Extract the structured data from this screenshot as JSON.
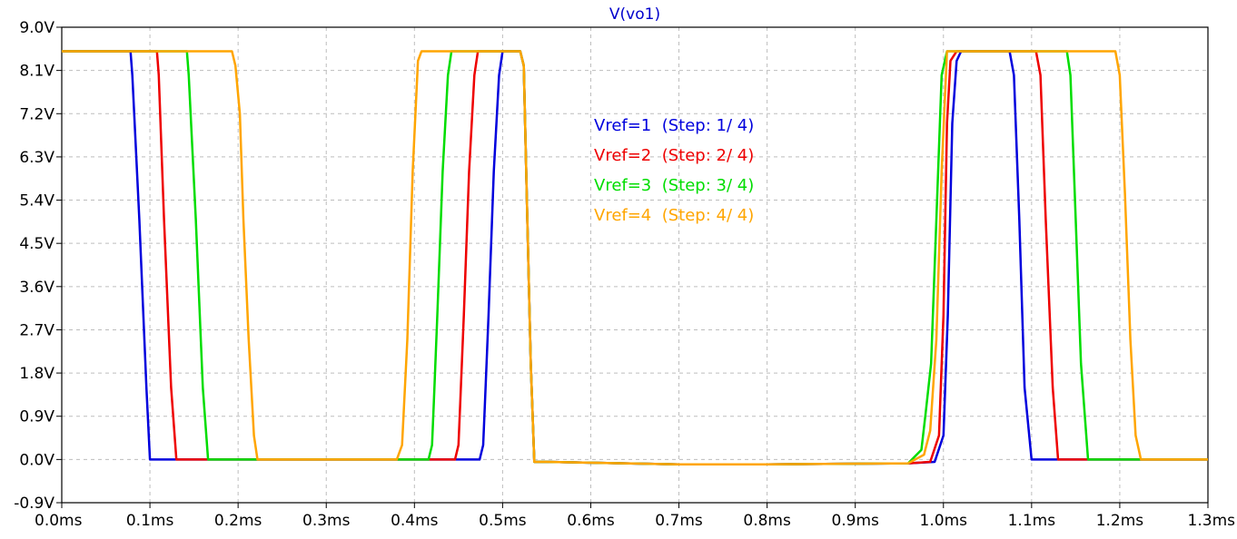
{
  "chart_data": {
    "type": "line",
    "title": "V(vo1)",
    "title_color": "#0000cc",
    "xlabel": "",
    "ylabel": "",
    "xlim": [
      0.0,
      1.3
    ],
    "ylim": [
      -0.9,
      9.0
    ],
    "x_unit": "ms",
    "y_unit": "V",
    "x_ticks": [
      "0.0ms",
      "0.1ms",
      "0.2ms",
      "0.3ms",
      "0.4ms",
      "0.5ms",
      "0.6ms",
      "0.7ms",
      "0.8ms",
      "0.9ms",
      "1.0ms",
      "1.1ms",
      "1.2ms",
      "1.3ms"
    ],
    "y_ticks": [
      "9.0V",
      "8.1V",
      "7.2V",
      "6.3V",
      "5.4V",
      "4.5V",
      "3.6V",
      "2.7V",
      "1.8V",
      "0.9V",
      "0.0V",
      "-0.9V"
    ],
    "grid": true,
    "grid_style": "dashed",
    "legend_placement": "upper-middle",
    "series": [
      {
        "name": "Vref=1  (Step: 1/ 4)",
        "color": "#0000dd",
        "x": [
          0.0,
          0.078,
          0.08,
          0.088,
          0.096,
          0.1,
          0.104,
          0.44,
          0.474,
          0.478,
          0.48,
          0.484,
          0.49,
          0.496,
          0.5,
          0.51,
          0.52,
          0.524,
          0.528,
          0.532,
          0.536,
          0.55,
          0.7,
          0.8,
          0.96,
          0.99,
          1.0,
          1.005,
          1.01,
          1.015,
          1.02,
          1.03,
          1.06,
          1.075,
          1.08,
          1.086,
          1.092,
          1.1,
          1.104,
          1.3
        ],
        "y": [
          8.5,
          8.5,
          8.0,
          5.0,
          1.5,
          0.0,
          0.0,
          0.0,
          0.0,
          0.3,
          1.2,
          3.0,
          6.0,
          8.0,
          8.5,
          8.5,
          8.5,
          8.2,
          5.0,
          2.0,
          -0.05,
          -0.05,
          -0.1,
          -0.1,
          -0.08,
          -0.05,
          0.5,
          3.0,
          7.0,
          8.3,
          8.5,
          8.5,
          8.5,
          8.5,
          8.0,
          5.0,
          1.5,
          0.0,
          0.0,
          0.0
        ]
      },
      {
        "name": "Vref=2  (Step: 2/ 4)",
        "color": "#ee0000",
        "x": [
          0.0,
          0.108,
          0.11,
          0.116,
          0.124,
          0.13,
          0.136,
          0.42,
          0.446,
          0.45,
          0.452,
          0.456,
          0.462,
          0.468,
          0.472,
          0.51,
          0.52,
          0.524,
          0.528,
          0.532,
          0.536,
          0.55,
          0.7,
          0.8,
          0.96,
          0.985,
          0.995,
          1.0,
          1.004,
          1.008,
          1.015,
          1.05,
          1.105,
          1.11,
          1.116,
          1.124,
          1.13,
          1.136,
          1.3
        ],
        "y": [
          8.5,
          8.5,
          8.0,
          5.0,
          1.5,
          0.0,
          0.0,
          0.0,
          0.0,
          0.3,
          1.2,
          3.0,
          6.0,
          8.0,
          8.5,
          8.5,
          8.5,
          8.2,
          5.0,
          2.0,
          -0.05,
          -0.05,
          -0.1,
          -0.1,
          -0.08,
          -0.05,
          0.5,
          3.0,
          7.0,
          8.3,
          8.5,
          8.5,
          8.5,
          8.0,
          5.0,
          1.5,
          0.0,
          0.0,
          0.0
        ]
      },
      {
        "name": "Vref=3  (Step: 3/ 4)",
        "color": "#00dd00",
        "x": [
          0.0,
          0.142,
          0.144,
          0.152,
          0.16,
          0.166,
          0.17,
          0.4,
          0.416,
          0.42,
          0.422,
          0.426,
          0.432,
          0.438,
          0.442,
          0.51,
          0.52,
          0.524,
          0.528,
          0.532,
          0.536,
          0.55,
          0.7,
          0.8,
          0.96,
          0.975,
          0.98,
          0.986,
          0.992,
          0.998,
          1.004,
          1.05,
          1.14,
          1.144,
          1.15,
          1.156,
          1.164,
          1.17,
          1.3
        ],
        "y": [
          8.5,
          8.5,
          8.0,
          5.0,
          1.5,
          0.0,
          0.0,
          0.0,
          0.0,
          0.3,
          1.2,
          3.0,
          6.0,
          8.0,
          8.5,
          8.5,
          8.5,
          8.2,
          5.0,
          2.0,
          -0.05,
          -0.05,
          -0.1,
          -0.1,
          -0.08,
          0.2,
          1.0,
          2.0,
          5.0,
          8.0,
          8.5,
          8.5,
          8.5,
          8.0,
          5.0,
          2.0,
          0.0,
          0.0,
          0.0
        ]
      },
      {
        "name": "Vref=4  (Step: 4/ 4)",
        "color": "#ffa500",
        "x": [
          0.0,
          0.193,
          0.197,
          0.202,
          0.206,
          0.212,
          0.218,
          0.222,
          0.228,
          0.38,
          0.386,
          0.392,
          0.398,
          0.404,
          0.408,
          0.51,
          0.52,
          0.524,
          0.528,
          0.532,
          0.536,
          0.55,
          0.7,
          0.8,
          0.96,
          0.978,
          0.985,
          0.992,
          0.998,
          1.004,
          1.05,
          1.195,
          1.2,
          1.206,
          1.212,
          1.218,
          1.224,
          1.23,
          1.3
        ],
        "y": [
          8.5,
          8.5,
          8.2,
          7.2,
          5.0,
          2.5,
          0.5,
          0.0,
          0.0,
          0.0,
          0.3,
          2.5,
          6.0,
          8.3,
          8.5,
          8.5,
          8.5,
          8.2,
          5.0,
          2.0,
          -0.05,
          -0.05,
          -0.1,
          -0.1,
          -0.08,
          0.1,
          0.6,
          2.5,
          6.0,
          8.5,
          8.5,
          8.5,
          8.0,
          5.5,
          2.5,
          0.5,
          0.0,
          0.0,
          0.0
        ]
      }
    ]
  }
}
